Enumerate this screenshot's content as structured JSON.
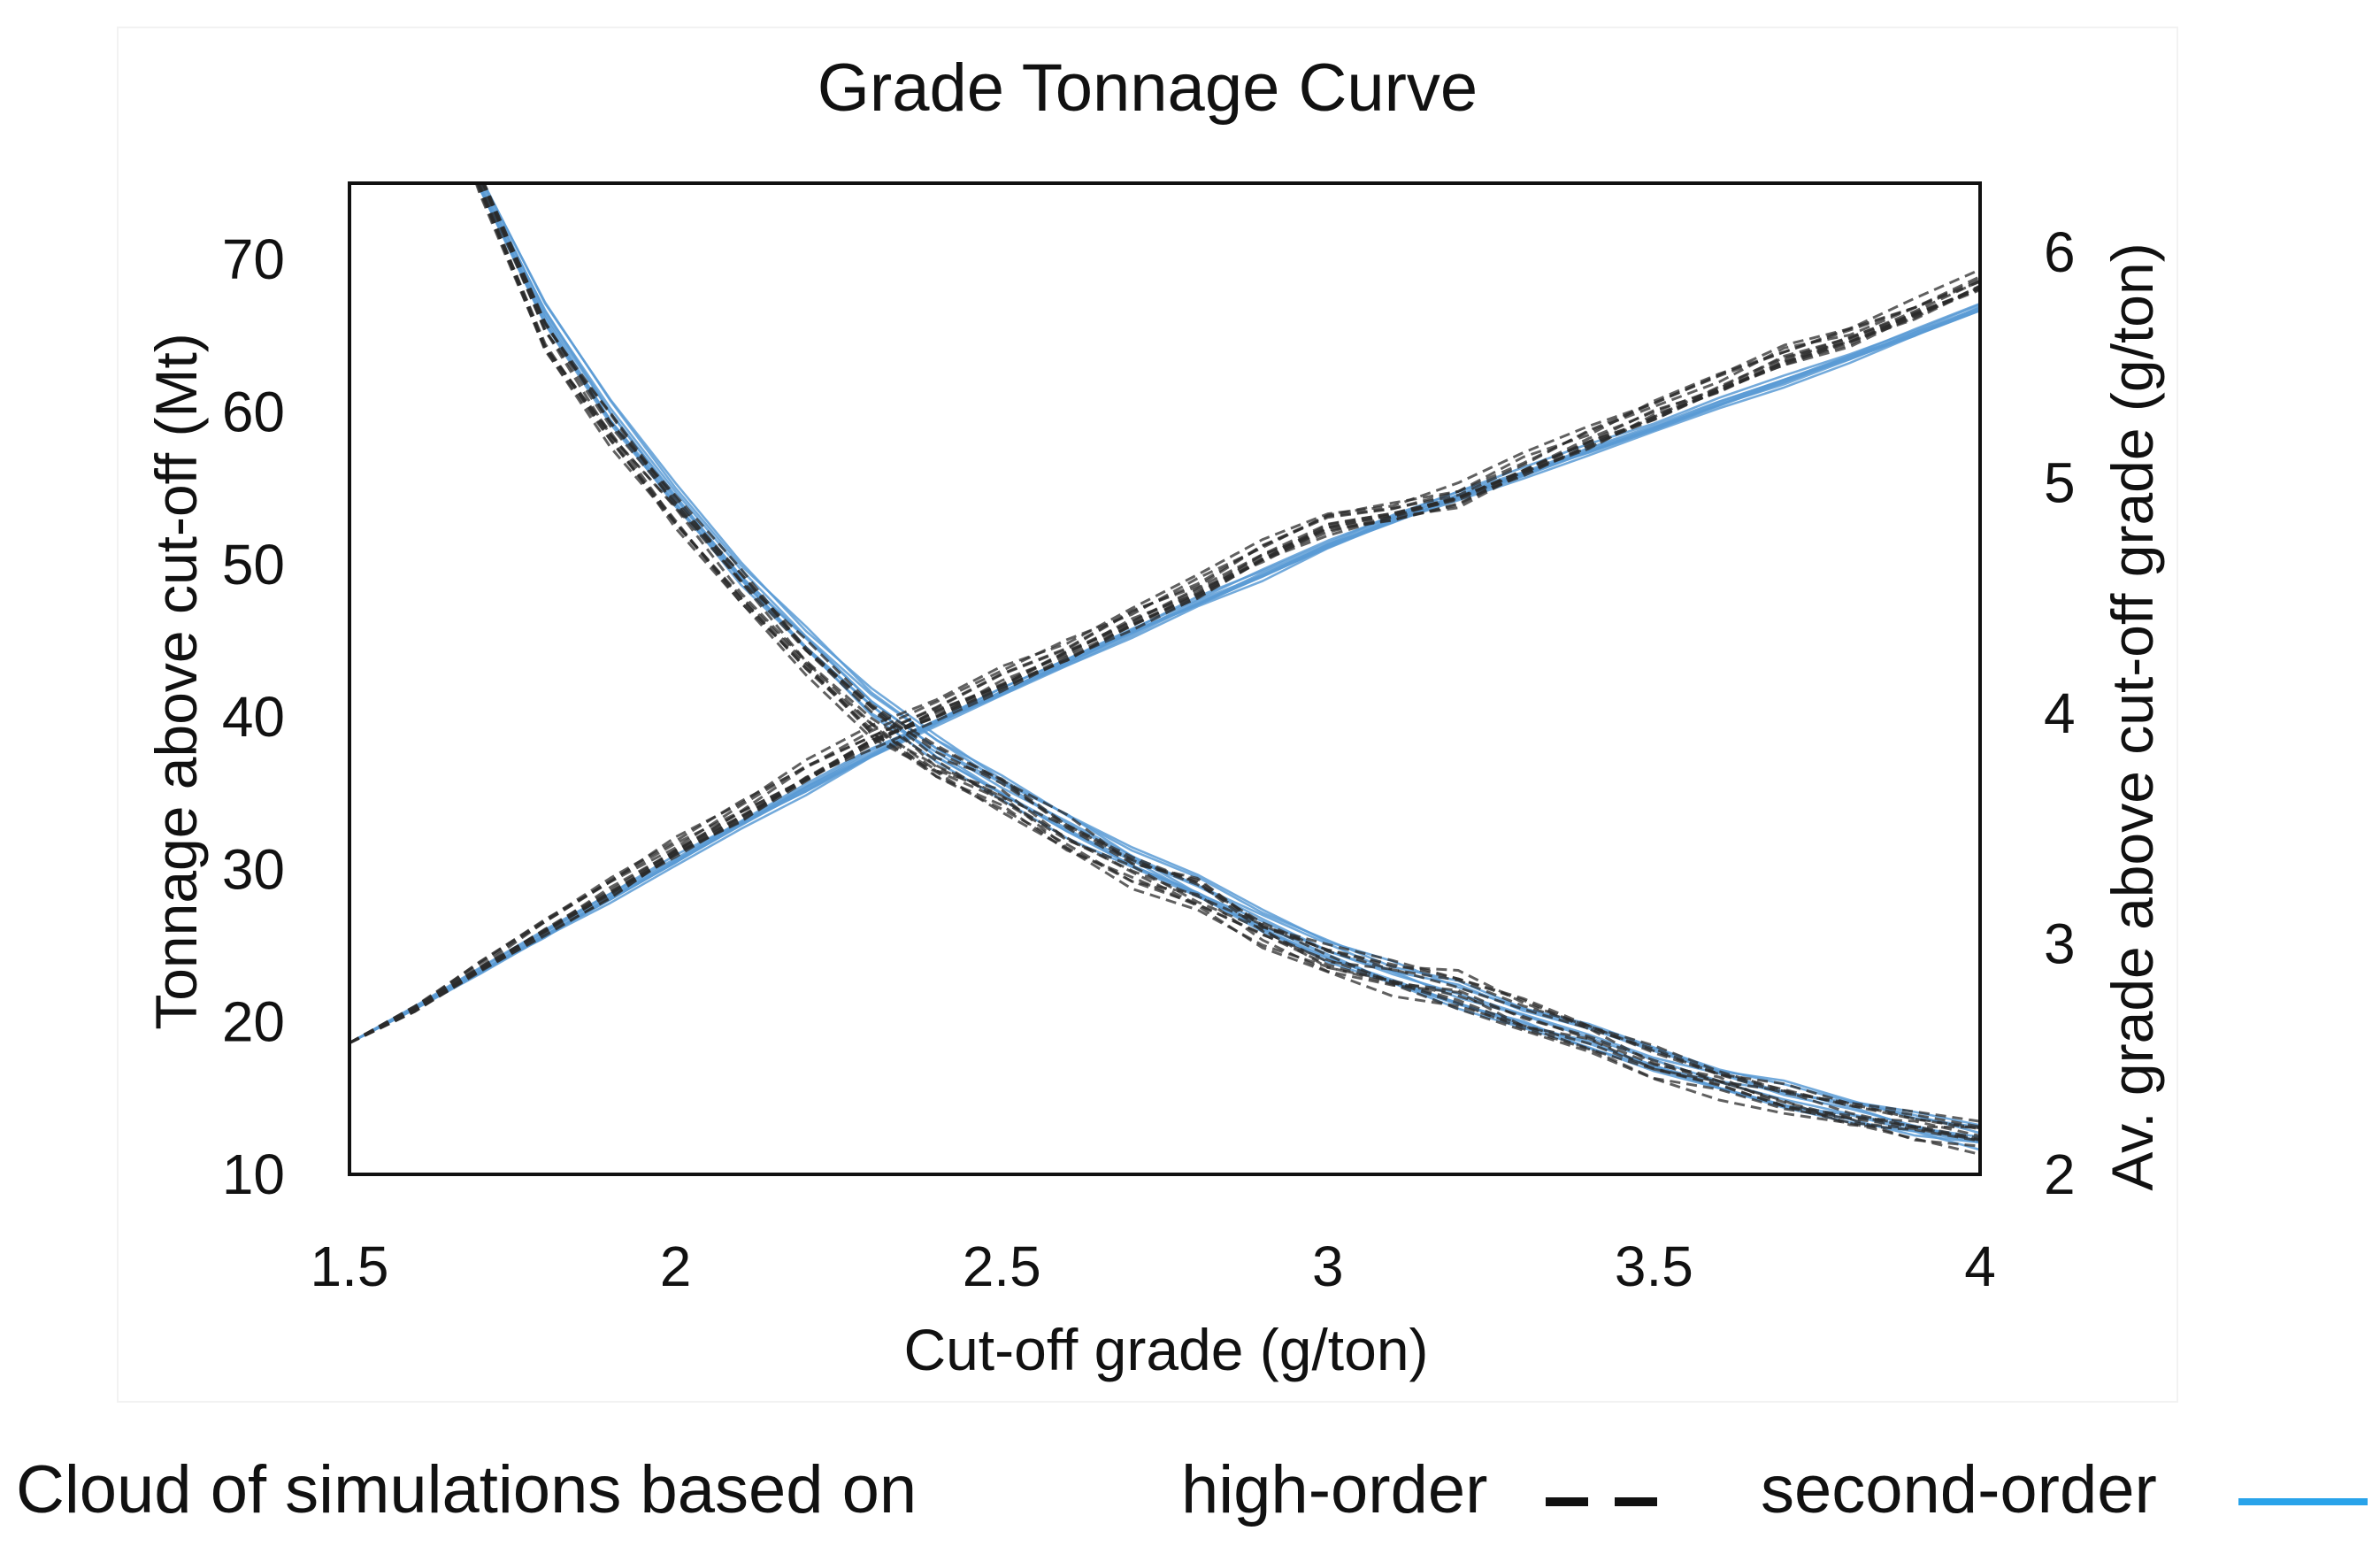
{
  "chart_data": {
    "type": "line",
    "title": "Grade Tonnage Curve",
    "xlabel": "Cut-off grade (g/ton)",
    "ylabel_left": "Tonnage above cut-off (Mt)",
    "ylabel_right": "Av. grade above cut-off grade (g/ton)",
    "xlim": [
      1.5,
      4
    ],
    "ylim_left": [
      10,
      75
    ],
    "ylim_right": [
      2,
      6.3
    ],
    "xticks": [
      "1.5",
      "2",
      "2.5",
      "3",
      "3.5",
      "4"
    ],
    "xtick_values": [
      1.5,
      2,
      2.5,
      3,
      3.5,
      4
    ],
    "yticks_left": [
      "10",
      "20",
      "30",
      "40",
      "50",
      "60",
      "70"
    ],
    "ytick_values_left": [
      10,
      20,
      30,
      40,
      50,
      60,
      70
    ],
    "yticks_right": [
      "2",
      "3",
      "4",
      "5",
      "6"
    ],
    "ytick_values_right": [
      2,
      3,
      4,
      5,
      6
    ],
    "grid": false,
    "x": [
      1.5,
      1.6,
      1.7,
      1.8,
      1.9,
      2.0,
      2.1,
      2.2,
      2.3,
      2.4,
      2.5,
      2.6,
      2.7,
      2.8,
      2.9,
      3.0,
      3.1,
      3.2,
      3.3,
      3.4,
      3.5,
      3.6,
      3.7,
      3.8,
      3.9,
      4.0
    ],
    "series": [
      {
        "name": "Tonnage, high-order",
        "axis": "left",
        "style": "dashed",
        "color": "#2b2b2b",
        "values": [
          null,
          null,
          75,
          65,
          59,
          53.5,
          48.5,
          44,
          40,
          37,
          35,
          32.5,
          30,
          28.5,
          26,
          24.2,
          23,
          22.3,
          20.5,
          19,
          17.5,
          16.2,
          15,
          14.2,
          13.3,
          12.6
        ]
      },
      {
        "name": "Tonnage, second-order",
        "axis": "left",
        "style": "solid",
        "color": "#5b9bd5",
        "values": [
          null,
          null,
          75,
          66.5,
          60,
          54.5,
          49.5,
          45,
          41,
          38,
          35.5,
          33,
          30.8,
          28.7,
          26.6,
          24.8,
          23.2,
          21.8,
          20.4,
          19,
          17.7,
          16.4,
          15.2,
          14.2,
          13.3,
          12.5
        ]
      },
      {
        "name": "Average grade, high-order",
        "axis": "right",
        "style": "dashed",
        "color": "#2b2b2b",
        "values": [
          2.57,
          2.72,
          2.9,
          3.08,
          3.25,
          3.42,
          3.58,
          3.75,
          3.9,
          4.02,
          4.15,
          4.28,
          4.42,
          4.55,
          4.7,
          4.83,
          4.88,
          4.95,
          5.08,
          5.2,
          5.32,
          5.44,
          5.56,
          5.64,
          5.75,
          5.88
        ]
      },
      {
        "name": "Average grade, second-order",
        "axis": "right",
        "style": "solid",
        "color": "#5b9bd5",
        "values": [
          2.57,
          2.72,
          2.88,
          3.04,
          3.2,
          3.36,
          3.52,
          3.67,
          3.82,
          3.96,
          4.09,
          4.22,
          4.35,
          4.48,
          4.6,
          4.73,
          4.84,
          4.94,
          5.04,
          5.14,
          5.24,
          5.34,
          5.44,
          5.54,
          5.65,
          5.76
        ]
      }
    ]
  },
  "legend": {
    "prefix": "Cloud of simulations based on",
    "high_order": "high-order",
    "second_order": "second-order",
    "high_order_color": "#111111",
    "second_order_color": "#29a3ea"
  }
}
